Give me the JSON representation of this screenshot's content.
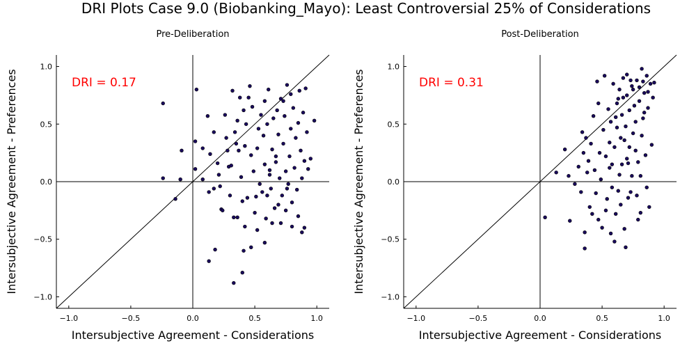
{
  "title": "DRI Plots Case 9.0 (Biobanking_Mayo): Least Controversial 25% of Considerations",
  "colors": {
    "point_fill": "#1a0a5e",
    "point_stroke": "#000000",
    "annotation": "#ff0000",
    "axis": "#000000"
  },
  "chart_data": [
    {
      "type": "scatter",
      "title": "Pre-Deliberation",
      "xlabel": "Intersubjective Agreement - Considerations",
      "ylabel": "Intersubjective Agreement - Preferences",
      "xlim": [
        -1.1,
        1.1
      ],
      "ylim": [
        -1.1,
        1.1
      ],
      "xticks": [
        -1.0,
        -0.5,
        0.0,
        0.5,
        1.0
      ],
      "yticks": [
        -1.0,
        -0.5,
        0.0,
        0.5,
        1.0
      ],
      "xtick_labels": [
        "−1.0",
        "−0.5",
        "0.0",
        "0.5",
        "1.0"
      ],
      "ytick_labels": [
        "−1.0",
        "−0.5",
        "0.0",
        "0.5",
        "1.0"
      ],
      "annotation": "DRI = 0.17",
      "reference_lines": [
        "y = x",
        "x = 0",
        "y = 0"
      ],
      "grid": false,
      "points": [
        [
          -0.24,
          0.68
        ],
        [
          -0.24,
          0.03
        ],
        [
          -0.1,
          0.02
        ],
        [
          -0.14,
          -0.15
        ],
        [
          -0.09,
          0.27
        ],
        [
          0.03,
          0.8
        ],
        [
          0.02,
          0.35
        ],
        [
          0.02,
          0.11
        ],
        [
          0.08,
          0.29
        ],
        [
          0.08,
          0.02
        ],
        [
          0.12,
          0.57
        ],
        [
          0.13,
          -0.09
        ],
        [
          0.14,
          0.24
        ],
        [
          0.17,
          0.43
        ],
        [
          0.17,
          -0.06
        ],
        [
          0.2,
          0.16
        ],
        [
          0.21,
          0.06
        ],
        [
          0.22,
          -0.04
        ],
        [
          0.23,
          -0.24
        ],
        [
          0.24,
          -0.25
        ],
        [
          0.26,
          0.58
        ],
        [
          0.27,
          0.38
        ],
        [
          0.28,
          0.27
        ],
        [
          0.29,
          0.13
        ],
        [
          0.3,
          -0.12
        ],
        [
          0.31,
          0.14
        ],
        [
          0.32,
          0.79
        ],
        [
          0.33,
          -0.31
        ],
        [
          0.34,
          0.43
        ],
        [
          0.35,
          0.33
        ],
        [
          0.36,
          0.53
        ],
        [
          0.37,
          0.27
        ],
        [
          0.38,
          0.73
        ],
        [
          0.39,
          0.04
        ],
        [
          0.4,
          -0.17
        ],
        [
          0.41,
          0.62
        ],
        [
          0.42,
          0.31
        ],
        [
          0.43,
          0.5
        ],
        [
          0.44,
          -0.14
        ],
        [
          0.45,
          0.73
        ],
        [
          0.46,
          0.83
        ],
        [
          0.47,
          0.23
        ],
        [
          0.48,
          0.65
        ],
        [
          0.49,
          0.09
        ],
        [
          0.5,
          -0.27
        ],
        [
          0.51,
          -0.13
        ],
        [
          0.52,
          0.29
        ],
        [
          0.53,
          0.46
        ],
        [
          0.54,
          -0.02
        ],
        [
          0.55,
          0.58
        ],
        [
          0.56,
          -0.09
        ],
        [
          0.57,
          0.4
        ],
        [
          0.58,
          0.15
        ],
        [
          0.59,
          -0.32
        ],
        [
          0.6,
          0.5
        ],
        [
          0.61,
          0.8
        ],
        [
          0.62,
          0.1
        ],
        [
          0.63,
          -0.06
        ],
        [
          0.64,
          0.28
        ],
        [
          0.65,
          0.55
        ],
        [
          0.66,
          -0.23
        ],
        [
          0.67,
          0.17
        ],
        [
          0.68,
          0.62
        ],
        [
          0.69,
          0.41
        ],
        [
          0.7,
          0.03
        ],
        [
          0.71,
          0.72
        ],
        [
          0.72,
          -0.12
        ],
        [
          0.73,
          0.33
        ],
        [
          0.74,
          0.57
        ],
        [
          0.75,
          0.09
        ],
        [
          0.76,
          0.84
        ],
        [
          0.77,
          -0.02
        ],
        [
          0.78,
          0.22
        ],
        [
          0.79,
          0.46
        ],
        [
          0.8,
          -0.18
        ],
        [
          0.81,
          0.64
        ],
        [
          0.82,
          0.12
        ],
        [
          0.83,
          0.38
        ],
        [
          0.84,
          -0.07
        ],
        [
          0.85,
          0.51
        ],
        [
          0.86,
          0.79
        ],
        [
          0.87,
          0.27
        ],
        [
          0.88,
          0.03
        ],
        [
          0.89,
          0.6
        ],
        [
          0.9,
          0.18
        ],
        [
          0.91,
          0.81
        ],
        [
          0.92,
          0.43
        ],
        [
          0.93,
          0.11
        ],
        [
          0.95,
          0.2
        ],
        [
          0.98,
          0.53
        ],
        [
          0.13,
          -0.69
        ],
        [
          0.18,
          -0.59
        ],
        [
          0.33,
          -0.88
        ],
        [
          0.4,
          -0.79
        ],
        [
          0.41,
          -0.6
        ],
        [
          0.47,
          -0.57
        ],
        [
          0.58,
          -0.53
        ],
        [
          0.71,
          -0.36
        ],
        [
          0.88,
          -0.44
        ],
        [
          0.9,
          -0.4
        ],
        [
          0.36,
          -0.31
        ],
        [
          0.42,
          -0.39
        ],
        [
          0.52,
          -0.42
        ],
        [
          0.6,
          -0.12
        ],
        [
          0.64,
          -0.36
        ],
        [
          0.69,
          -0.2
        ],
        [
          0.75,
          -0.25
        ],
        [
          0.8,
          -0.39
        ],
        [
          0.85,
          -0.3
        ],
        [
          0.58,
          0.7
        ],
        [
          0.62,
          0.06
        ],
        [
          0.67,
          0.22
        ],
        [
          0.73,
          0.7
        ],
        [
          0.76,
          -0.06
        ],
        [
          0.79,
          0.76
        ]
      ]
    },
    {
      "type": "scatter",
      "title": "Post-Deliberation",
      "xlabel": "Intersubjective Agreement - Considerations",
      "ylabel": "Intersubjective Agreement - Preferences",
      "xlim": [
        -1.1,
        1.1
      ],
      "ylim": [
        -1.1,
        1.1
      ],
      "xticks": [
        -1.0,
        -0.5,
        0.0,
        0.5,
        1.0
      ],
      "yticks": [
        -1.0,
        -0.5,
        0.0,
        0.5,
        1.0
      ],
      "xtick_labels": [
        "−1.0",
        "−0.5",
        "0.0",
        "0.5",
        "1.0"
      ],
      "ytick_labels": [
        "−1.0",
        "−0.5",
        "0.0",
        "0.5",
        "1.0"
      ],
      "annotation": "DRI = 0.31",
      "reference_lines": [
        "y = x",
        "x = 0",
        "y = 0"
      ],
      "grid": false,
      "points": [
        [
          0.04,
          -0.31
        ],
        [
          0.13,
          0.08
        ],
        [
          0.2,
          0.28
        ],
        [
          0.23,
          0.05
        ],
        [
          0.24,
          -0.34
        ],
        [
          0.28,
          -0.02
        ],
        [
          0.31,
          0.13
        ],
        [
          0.33,
          -0.09
        ],
        [
          0.34,
          0.43
        ],
        [
          0.35,
          0.25
        ],
        [
          0.36,
          -0.44
        ],
        [
          0.36,
          -0.58
        ],
        [
          0.37,
          0.38
        ],
        [
          0.38,
          0.08
        ],
        [
          0.39,
          0.18
        ],
        [
          0.4,
          -0.22
        ],
        [
          0.41,
          0.33
        ],
        [
          0.42,
          -0.28
        ],
        [
          0.43,
          0.57
        ],
        [
          0.44,
          0.1
        ],
        [
          0.45,
          -0.1
        ],
        [
          0.46,
          0.87
        ],
        [
          0.47,
          0.68
        ],
        [
          0.48,
          0.25
        ],
        [
          0.49,
          0.02
        ],
        [
          0.5,
          -0.4
        ],
        [
          0.51,
          0.45
        ],
        [
          0.52,
          0.92
        ],
        [
          0.53,
          0.22
        ],
        [
          0.54,
          -0.15
        ],
        [
          0.55,
          0.63
        ],
        [
          0.56,
          0.12
        ],
        [
          0.57,
          0.52
        ],
        [
          0.58,
          -0.05
        ],
        [
          0.59,
          0.85
        ],
        [
          0.6,
          0.3
        ],
        [
          0.61,
          -0.28
        ],
        [
          0.62,
          0.47
        ],
        [
          0.63,
          0.72
        ],
        [
          0.64,
          0.06
        ],
        [
          0.65,
          -0.2
        ],
        [
          0.66,
          0.58
        ],
        [
          0.67,
          0.9
        ],
        [
          0.68,
          0.36
        ],
        [
          0.69,
          -0.57
        ],
        [
          0.7,
          0.75
        ],
        [
          0.71,
          0.16
        ],
        [
          0.72,
          0.62
        ],
        [
          0.73,
          -0.09
        ],
        [
          0.74,
          0.83
        ],
        [
          0.75,
          0.42
        ],
        [
          0.76,
          0.66
        ],
        [
          0.77,
          0.27
        ],
        [
          0.78,
          0.88
        ],
        [
          0.79,
          -0.33
        ],
        [
          0.8,
          0.7
        ],
        [
          0.81,
          0.05
        ],
        [
          0.82,
          0.98
        ],
        [
          0.83,
          0.55
        ],
        [
          0.84,
          0.77
        ],
        [
          0.85,
          0.23
        ],
        [
          0.86,
          0.92
        ],
        [
          0.87,
          0.64
        ],
        [
          0.88,
          -0.22
        ],
        [
          0.89,
          0.85
        ],
        [
          0.9,
          0.32
        ],
        [
          0.91,
          0.73
        ],
        [
          0.92,
          0.86
        ],
        [
          0.6,
          -0.52
        ],
        [
          0.57,
          -0.45
        ],
        [
          0.47,
          -0.33
        ],
        [
          0.53,
          -0.25
        ],
        [
          0.68,
          -0.41
        ],
        [
          0.71,
          -0.14
        ],
        [
          0.81,
          -0.27
        ],
        [
          0.56,
          0.34
        ],
        [
          0.61,
          0.56
        ],
        [
          0.66,
          0.15
        ],
        [
          0.69,
          0.48
        ],
        [
          0.72,
          0.3
        ],
        [
          0.74,
          0.05
        ],
        [
          0.77,
          0.52
        ],
        [
          0.79,
          0.17
        ],
        [
          0.82,
          0.4
        ],
        [
          0.84,
          0.6
        ],
        [
          0.86,
          -0.05
        ],
        [
          0.64,
          0.8
        ],
        [
          0.73,
          0.88
        ],
        [
          0.8,
          0.82
        ],
        [
          0.87,
          0.78
        ],
        [
          0.62,
          0.68
        ],
        [
          0.67,
          0.73
        ],
        [
          0.7,
          0.93
        ],
        [
          0.75,
          0.8
        ],
        [
          0.83,
          0.87
        ],
        [
          0.58,
          0.15
        ],
        [
          0.63,
          -0.08
        ],
        [
          0.65,
          0.38
        ],
        [
          0.7,
          0.2
        ],
        [
          0.78,
          -0.12
        ]
      ]
    }
  ]
}
